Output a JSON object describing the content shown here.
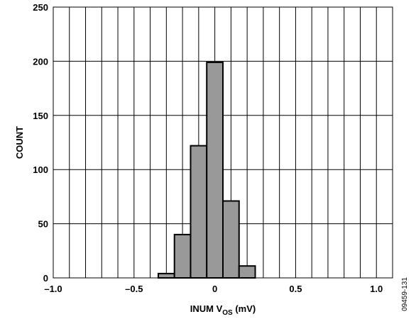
{
  "chart_data": {
    "type": "bar",
    "title": "",
    "xlabel_main": "INUM V",
    "xlabel_sub": "OS",
    "xlabel_unit": " (mV)",
    "ylabel": "COUNT",
    "xlim": [
      -1.0,
      1.1
    ],
    "ylim": [
      0,
      250
    ],
    "x_ticks": [
      -1.0,
      -0.5,
      0,
      0.5,
      1.0
    ],
    "x_tick_labels": [
      "–1.0",
      "–0.5",
      "0",
      "0.5",
      "1.0"
    ],
    "y_ticks": [
      0,
      50,
      100,
      150,
      200,
      250
    ],
    "y_tick_labels": [
      "0",
      "50",
      "100",
      "150",
      "200",
      "250"
    ],
    "grid": true,
    "bin_width": 0.1,
    "bins": [
      {
        "x0": -0.35,
        "x1": -0.25,
        "count": 4
      },
      {
        "x0": -0.25,
        "x1": -0.15,
        "count": 40
      },
      {
        "x0": -0.15,
        "x1": -0.05,
        "count": 122
      },
      {
        "x0": -0.05,
        "x1": 0.05,
        "count": 199
      },
      {
        "x0": 0.05,
        "x1": 0.15,
        "count": 71
      },
      {
        "x0": 0.15,
        "x1": 0.25,
        "count": 11
      }
    ],
    "bar_color": "#999999",
    "figure_id": "09459-131"
  }
}
